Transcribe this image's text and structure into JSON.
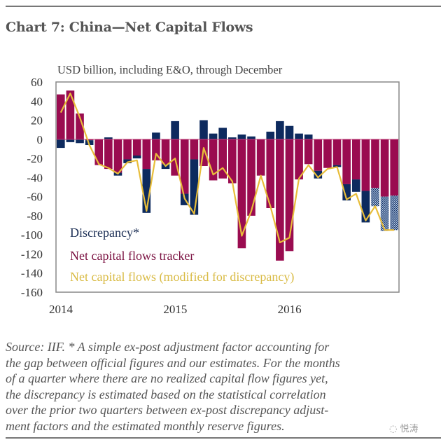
{
  "chart_data": {
    "type": "bar+line",
    "title": "Chart 7: China—Net Capital Flows",
    "subtitle": "USD billion, including E&O, through December",
    "ylim": [
      -160,
      60
    ],
    "yticks": [
      "60",
      "40",
      "20",
      "0",
      "-20",
      "-40",
      "-60",
      "-80",
      "-100",
      "-120",
      "-140",
      "-160"
    ],
    "ytick_values": [
      60,
      40,
      20,
      0,
      -20,
      -40,
      -60,
      -80,
      -100,
      -120,
      -140,
      -160
    ],
    "xtick_labels": [
      "2014",
      "2015",
      "2016"
    ],
    "x": [
      "2014-01",
      "2014-02",
      "2014-03",
      "2014-04",
      "2014-05",
      "2014-06",
      "2014-07",
      "2014-08",
      "2014-09",
      "2014-10",
      "2014-11",
      "2014-12",
      "2015-01",
      "2015-02",
      "2015-03",
      "2015-04",
      "2015-05",
      "2015-06",
      "2015-07",
      "2015-08",
      "2015-09",
      "2015-10",
      "2015-11",
      "2015-12",
      "2016-01",
      "2016-02",
      "2016-03",
      "2016-04",
      "2016-05",
      "2016-06",
      "2016-07",
      "2016-08",
      "2016-09",
      "2016-10",
      "2016-11",
      "2016-12"
    ],
    "grid": false,
    "legend_placement": "bottom-left",
    "series": [
      {
        "name": "Discrepancy*",
        "kind": "stacked-bar",
        "color": "#0d2a5e",
        "values": [
          -9,
          -3,
          -4,
          -5,
          0,
          2,
          -3,
          -4,
          -3,
          -46,
          7,
          -5,
          19,
          -12,
          -58,
          20,
          6,
          12,
          2,
          5,
          3,
          0,
          8,
          19,
          14,
          6,
          5,
          -8,
          0,
          -2,
          -17,
          -13,
          -33,
          -19,
          -36,
          -36
        ],
        "estimated_months": [
          "2016-10",
          "2016-11",
          "2016-12"
        ]
      },
      {
        "name": "Net capital flows tracker",
        "kind": "bar",
        "color": "#9a0c50",
        "values": [
          47,
          51,
          27,
          -1,
          -27,
          -31,
          -35,
          -21,
          -17,
          -31,
          -22,
          -26,
          -38,
          -57,
          -21,
          -28,
          -43,
          -41,
          -46,
          -114,
          -80,
          -38,
          -72,
          -127,
          -117,
          -42,
          -26,
          -33,
          -30,
          -27,
          -47,
          -42,
          -54,
          -51,
          -60,
          -59
        ]
      },
      {
        "name": "Net capital flows (modified for discrepancy)",
        "kind": "line",
        "color": "#e8bd3a",
        "values": [
          28,
          48,
          23,
          -6,
          -26,
          -30,
          -36,
          -24,
          -22,
          -75,
          -15,
          -28,
          -20,
          -62,
          -78,
          -9,
          -37,
          -30,
          -44,
          -101,
          -75,
          -38,
          -70,
          -108,
          -103,
          -41,
          -27,
          -40,
          -31,
          -29,
          -63,
          -57,
          -85,
          -70,
          -95,
          -95
        ]
      }
    ]
  },
  "source_note": "Source: IIF. * A simple ex-post adjustment factor accounting for the gap between official figures and our estimates. For the months of a quarter where there are no realized capital flow figures yet, the discrepancy is estimated based on the statistical correlation over the prior two quarters between ex-post discrepancy adjust-ment factors and the estimated monthly reserve figures.",
  "source_lines": [
    "Source: IIF. * A simple ex-post adjustment factor accounting for",
    "the gap between official figures and our estimates. For the months",
    "of a quarter where there are no realized capital flow figures yet,",
    "the discrepancy is estimated based on the statistical correlation",
    "over the prior two quarters between ex-post discrepancy adjust-",
    "ment factors and the estimated monthly reserve figures."
  ],
  "watermark": "悦涛"
}
